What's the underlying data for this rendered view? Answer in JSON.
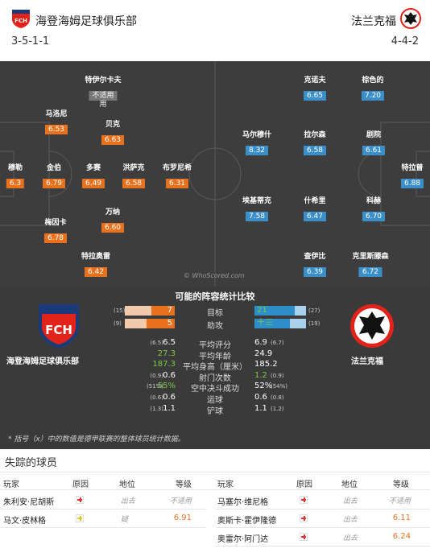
{
  "home": {
    "name": "海登海姆足球俱乐部",
    "formation": "3-5-1-1",
    "crest_text": "FCH",
    "crest_color": "#e2231a"
  },
  "away": {
    "name": "法兰克福",
    "formation": "4-4-2",
    "crest_color": "#e2231a"
  },
  "home_players": [
    {
      "name": "特伊尔卡夫",
      "rating": "不适用",
      "note": "用"
    },
    {
      "name": "马洛尼",
      "rating": "6.53"
    },
    {
      "name": "贝克",
      "rating": "6.63"
    },
    {
      "name": "穆勒",
      "rating": "6.3"
    },
    {
      "name": "金伯",
      "rating": "6.79"
    },
    {
      "name": "多赛",
      "rating": "6.49"
    },
    {
      "name": "洪萨克",
      "rating": "6.58"
    },
    {
      "name": "布罗尼希",
      "rating": "6.31"
    },
    {
      "name": "万纳",
      "rating": "6.60"
    },
    {
      "name": "梅因卡",
      "rating": "6.78"
    },
    {
      "name": "特拉奥雷",
      "rating": "6.42"
    }
  ],
  "away_players": [
    {
      "name": "克诺夫",
      "rating": "6.65"
    },
    {
      "name": "棕色的",
      "rating": "7.20"
    },
    {
      "name": "马尔穆什",
      "rating": "8.32"
    },
    {
      "name": "拉尔森",
      "rating": "6.58"
    },
    {
      "name": "剧院",
      "rating": "6.61"
    },
    {
      "name": "特拉普",
      "rating": "6.88"
    },
    {
      "name": "埃基蒂克",
      "rating": "7.58"
    },
    {
      "name": "什希里",
      "rating": "6.47"
    },
    {
      "name": "科赫",
      "rating": "6.70"
    },
    {
      "name": "查伊比",
      "rating": "6.39"
    },
    {
      "name": "克里斯滕森",
      "rating": "6.72"
    }
  ],
  "watermark": "© WhoScored.com",
  "comparison": {
    "title": "可能的阵容统计比较",
    "bars": [
      {
        "label": "目标",
        "home": "7",
        "home_paren": "(15)",
        "home_frac": 0.47,
        "away": "21",
        "away_paren": "(27)",
        "away_frac": 0.78
      },
      {
        "label": "助攻",
        "home": "5",
        "home_paren": "(9)",
        "home_frac": 0.56,
        "away": "十三",
        "away_paren": "(19)",
        "away_frac": 0.68
      }
    ],
    "stats": [
      {
        "label": "平均评分",
        "home_paren": "(6.5)",
        "home": "6.5",
        "away": "6.9",
        "away_paren": "(6.7)",
        "home_green": false,
        "away_green": false
      },
      {
        "label": "平均年龄",
        "home_paren": "",
        "home": "27.3",
        "away": "24.9",
        "away_paren": "",
        "home_green": true,
        "away_green": false
      },
      {
        "label": "平均身高（厘米）",
        "home_paren": "",
        "home": "187.3",
        "away": "185.2",
        "away_paren": "",
        "home_green": true,
        "away_green": false
      },
      {
        "label": "射门次数",
        "home_paren": "(0.9)",
        "home": "0.6",
        "away": "1.2",
        "away_paren": "(0.9)",
        "home_green": false,
        "away_green": true
      },
      {
        "label": "空中决斗成功",
        "home_paren": "(51%)",
        "home": "55%",
        "away": "52%",
        "away_paren": "(54%)",
        "home_green": true,
        "away_green": false
      },
      {
        "label": "运球",
        "home_paren": "(0.6)",
        "home": "0.6",
        "away": "0.6",
        "away_paren": "(0.8)",
        "home_green": false,
        "away_green": false
      },
      {
        "label": "铲球",
        "home_paren": "(1.3)",
        "home": "1.1",
        "away": "1.1",
        "away_paren": "(1.2)",
        "home_green": false,
        "away_green": false
      }
    ],
    "footnote": "* 括号（x）中的数值是德甲联赛的整体球员统计数据。"
  },
  "missing": {
    "title": "失踪的球员",
    "headers": {
      "player": "玩家",
      "reason": "原因",
      "position": "地位",
      "rating": "等级"
    },
    "home_rows": [
      {
        "player": "朱利安·尼胡斯",
        "reason": "injury",
        "position": "出去",
        "rating": "不适用"
      },
      {
        "player": "马文·皮林格",
        "reason": "doubt",
        "position": "疑",
        "rating": "6.91"
      }
    ],
    "away_rows": [
      {
        "player": "马塞尔·维尼格",
        "reason": "injury",
        "position": "出去",
        "rating": "不适用"
      },
      {
        "player": "奥斯卡·霍伊隆德",
        "reason": "injury",
        "position": "出去",
        "rating": "6.11"
      },
      {
        "player": "奥雷尔·阿门达",
        "reason": "injury",
        "position": "出去",
        "rating": "6.24"
      }
    ]
  }
}
